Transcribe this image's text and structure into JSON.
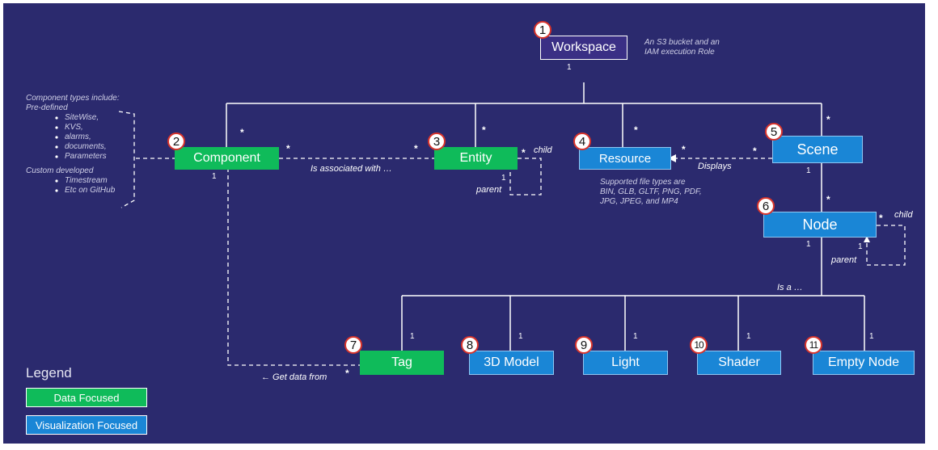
{
  "colors": {
    "background": "#2b2a6e",
    "data_focused": "#0fbb5a",
    "visualization_focused": "#1a86d6",
    "workspace_box": "#3a2f85",
    "badge_border": "#d9342b",
    "lines": "#ffffff"
  },
  "nodes": {
    "workspace": {
      "number": "1",
      "label": "Workspace",
      "note_lines": [
        "An S3 bucket and an",
        "IAM execution Role"
      ]
    },
    "component": {
      "number": "2",
      "label": "Component"
    },
    "entity": {
      "number": "3",
      "label": "Entity"
    },
    "resource": {
      "number": "4",
      "label": "Resource",
      "note_lines": [
        "Supported file types are",
        "BIN, GLB, GLTF, PNG, PDF,",
        "JPG, JPEG, and MP4"
      ]
    },
    "scene": {
      "number": "5",
      "label": "Scene"
    },
    "node": {
      "number": "6",
      "label": "Node"
    },
    "tag": {
      "number": "7",
      "label": "Tag"
    },
    "model3d": {
      "number": "8",
      "label": "3D Model"
    },
    "light": {
      "number": "9",
      "label": "Light"
    },
    "shader": {
      "number": "10",
      "label": "Shader"
    },
    "empty_node": {
      "number": "11",
      "label": "Empty Node"
    }
  },
  "component_types": {
    "heading_lines": [
      "Component types include:",
      "Pre-defined"
    ],
    "predefined": [
      "SiteWise,",
      "KVS,",
      "alarms,",
      "documents,",
      "Parameters"
    ],
    "custom_heading": "Custom developed",
    "custom": [
      "Timestream",
      "Etc on GitHub"
    ]
  },
  "relations": {
    "associated": "Is associated with …",
    "displays": "Displays",
    "is_a": "Is a …",
    "get_data": "← Get data from",
    "child": "child",
    "parent": "parent",
    "one": "1",
    "many": "*"
  },
  "legend": {
    "title": "Legend",
    "data_focused": "Data Focused",
    "visualization_focused": "Visualization Focused"
  }
}
